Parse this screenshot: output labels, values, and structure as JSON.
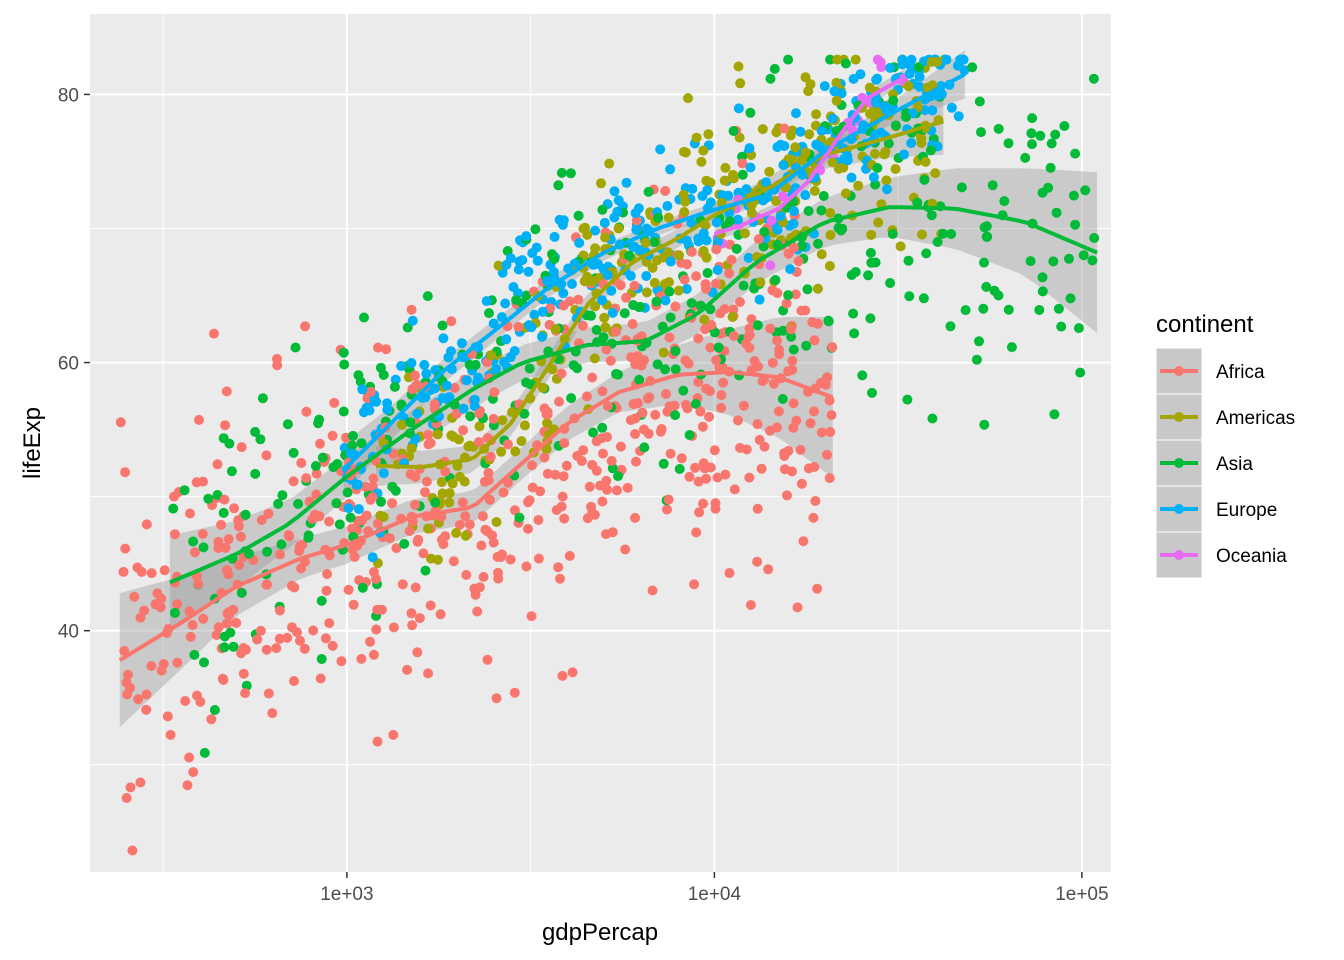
{
  "chart_data": {
    "type": "scatter",
    "title": "",
    "xlabel": "gdpPercap",
    "ylabel": "lifeExp",
    "x_scale": "log10",
    "xlim": [
      200,
      120000
    ],
    "ylim": [
      22,
      86
    ],
    "x_ticks": [
      1000,
      10000,
      100000
    ],
    "x_tick_labels": [
      "1e+03",
      "1e+04",
      "1e+05"
    ],
    "y_ticks": [
      40,
      60,
      80
    ],
    "y_tick_labels": [
      "40",
      "60",
      "80"
    ],
    "grid": true,
    "legend": {
      "title": "continent",
      "position": "right"
    },
    "series": [
      {
        "name": "Africa",
        "color": "#F8766D",
        "n_points": 624,
        "smooth": [
          [
            241,
            37.8
          ],
          [
            350,
            40.5
          ],
          [
            500,
            43.3
          ],
          [
            750,
            45.4
          ],
          [
            1000,
            46.4
          ],
          [
            1500,
            48.5
          ],
          [
            2200,
            49.2
          ],
          [
            3000,
            52.5
          ],
          [
            4000,
            55.5
          ],
          [
            5500,
            57.8
          ],
          [
            8000,
            59.1
          ],
          [
            11000,
            59.3
          ],
          [
            15000,
            58.9
          ],
          [
            21000,
            57.4
          ]
        ],
        "band_halfwidth": [
          5,
          3.5,
          2.2,
          1.5,
          1.4,
          1.3,
          1.2,
          1.2,
          1.3,
          1.5,
          2.2,
          3.2,
          4.5,
          6
        ]
      },
      {
        "name": "Americas",
        "color": "#A3A500",
        "n_points": 300,
        "smooth": [
          [
            1200,
            52.3
          ],
          [
            1600,
            52.2
          ],
          [
            2200,
            52.8
          ],
          [
            2800,
            55.5
          ],
          [
            3500,
            59.5
          ],
          [
            4500,
            64.3
          ],
          [
            6000,
            67.5
          ],
          [
            8000,
            69.3
          ],
          [
            10000,
            71
          ],
          [
            14000,
            73
          ],
          [
            20000,
            75.5
          ],
          [
            30000,
            76.8
          ],
          [
            42000,
            78
          ]
        ],
        "band_halfwidth": [
          1.5,
          1.2,
          1.0,
          1.0,
          0.9,
          0.8,
          0.7,
          0.7,
          0.7,
          0.8,
          1.0,
          1.5,
          2.5
        ]
      },
      {
        "name": "Asia",
        "color": "#00BA38",
        "n_points": 396,
        "smooth": [
          [
            330,
            43.6
          ],
          [
            500,
            45.7
          ],
          [
            700,
            48
          ],
          [
            1000,
            51.5
          ],
          [
            1500,
            55
          ],
          [
            2200,
            58
          ],
          [
            3000,
            60
          ],
          [
            4500,
            61.3
          ],
          [
            6500,
            61.6
          ],
          [
            9000,
            63.6
          ],
          [
            13000,
            67.5
          ],
          [
            20000,
            70.5
          ],
          [
            30000,
            71.6
          ],
          [
            45000,
            71.5
          ],
          [
            70000,
            70.5
          ],
          [
            110000,
            68.2
          ]
        ],
        "band_halfwidth": [
          3.5,
          2.5,
          1.8,
          1.5,
          1.4,
          1.4,
          1.3,
          1.3,
          1.4,
          1.5,
          1.6,
          1.8,
          2.2,
          3,
          4,
          6
        ]
      },
      {
        "name": "Europe",
        "color": "#00B0F6",
        "n_points": 360,
        "smooth": [
          [
            980,
            52
          ],
          [
            1300,
            55.3
          ],
          [
            1800,
            59.2
          ],
          [
            2500,
            62.3
          ],
          [
            3500,
            65.5
          ],
          [
            5000,
            68.2
          ],
          [
            7000,
            70
          ],
          [
            10000,
            71.4
          ],
          [
            14000,
            72.5
          ],
          [
            20000,
            75.8
          ],
          [
            30000,
            78.5
          ],
          [
            48000,
            81.5
          ]
        ],
        "band_halfwidth": [
          2,
          1.3,
          0.9,
          0.8,
          0.7,
          0.6,
          0.5,
          0.5,
          0.5,
          0.6,
          0.8,
          1.8
        ]
      },
      {
        "name": "Oceania",
        "color": "#E76BF3",
        "n_points": 24,
        "smooth": [
          [
            10000,
            69.6
          ],
          [
            12000,
            70.3
          ],
          [
            15000,
            71.5
          ],
          [
            18000,
            73.5
          ],
          [
            22000,
            77
          ],
          [
            26000,
            79.7
          ],
          [
            33000,
            81.3
          ]
        ],
        "band_halfwidth": [
          0.5,
          0.5,
          0.5,
          0.6,
          0.6,
          0.5,
          0.6
        ]
      }
    ]
  },
  "legend": {
    "title": "continent",
    "items": [
      "Africa",
      "Americas",
      "Asia",
      "Europe",
      "Oceania"
    ]
  },
  "axes": {
    "x_title": "gdpPercap",
    "y_title": "lifeExp"
  }
}
